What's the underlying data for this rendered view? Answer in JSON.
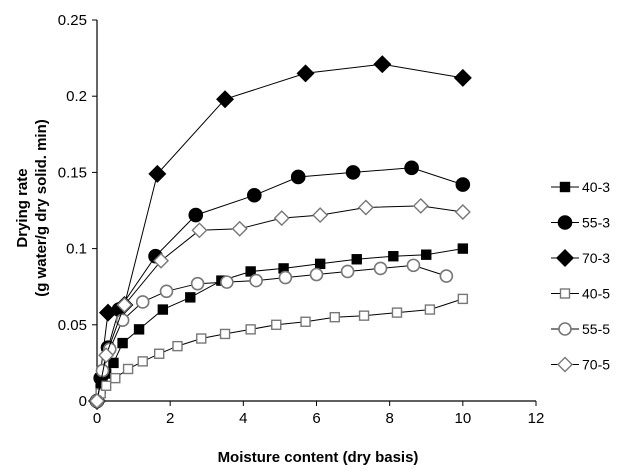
{
  "chart_data": {
    "type": "line",
    "title": "",
    "xlabel": "Moisture content (dry basis)",
    "ylabel_line1": "Drying rate",
    "ylabel_line2": "(g water/g dry solid. min)",
    "xlim": [
      0,
      12
    ],
    "ylim": [
      0,
      0.25
    ],
    "xticks": [
      0,
      2,
      4,
      6,
      8,
      10,
      12
    ],
    "xtick_labels": [
      "0",
      "2",
      "4",
      "6",
      "8",
      "10",
      "12"
    ],
    "yticks": [
      0,
      0.05,
      0.1,
      0.15,
      0.2,
      0.25
    ],
    "ytick_labels": [
      "0",
      "0.05",
      "0.1",
      "0.15",
      "0.2",
      "0.25"
    ],
    "grid": false,
    "legend_position": "right",
    "series": [
      {
        "name": "40-3",
        "marker": "square-filled",
        "x": [
          0,
          0.1,
          0.25,
          0.45,
          0.7,
          1.15,
          1.8,
          2.55,
          3.4,
          4.2,
          5.1,
          6.1,
          7.1,
          8.1,
          9.0,
          10.0
        ],
        "y": [
          0,
          0.008,
          0.018,
          0.025,
          0.038,
          0.047,
          0.06,
          0.068,
          0.079,
          0.085,
          0.087,
          0.09,
          0.093,
          0.095,
          0.096,
          0.1
        ]
      },
      {
        "name": "55-3",
        "marker": "circle-filled",
        "x": [
          0,
          0.1,
          0.3,
          0.6,
          1.6,
          2.7,
          4.3,
          5.5,
          7.0,
          8.6,
          10.0
        ],
        "y": [
          0,
          0.015,
          0.035,
          0.06,
          0.095,
          0.122,
          0.135,
          0.147,
          0.15,
          0.153,
          0.142
        ]
      },
      {
        "name": "70-3",
        "marker": "diamond-filled",
        "x": [
          0,
          0.3,
          0.75,
          1.65,
          3.5,
          5.7,
          7.8,
          10.0
        ],
        "y": [
          0,
          0.058,
          0.063,
          0.149,
          0.198,
          0.215,
          0.221,
          0.212
        ]
      },
      {
        "name": "40-5",
        "marker": "square-open",
        "x": [
          0,
          0.1,
          0.25,
          0.5,
          0.85,
          1.25,
          1.7,
          2.2,
          2.85,
          3.5,
          4.2,
          4.9,
          5.7,
          6.5,
          7.3,
          8.2,
          9.1,
          10.0
        ],
        "y": [
          0,
          0.005,
          0.01,
          0.015,
          0.021,
          0.026,
          0.031,
          0.036,
          0.041,
          0.044,
          0.047,
          0.05,
          0.052,
          0.055,
          0.056,
          0.058,
          0.06,
          0.067
        ]
      },
      {
        "name": "55-5",
        "marker": "circle-open",
        "x": [
          0,
          0.15,
          0.35,
          0.7,
          1.25,
          1.9,
          2.75,
          3.55,
          4.35,
          5.15,
          6.0,
          6.85,
          7.75,
          8.65,
          9.55
        ],
        "y": [
          0,
          0.02,
          0.034,
          0.053,
          0.065,
          0.072,
          0.077,
          0.078,
          0.079,
          0.081,
          0.083,
          0.085,
          0.087,
          0.089,
          0.082
        ]
      },
      {
        "name": "70-5",
        "marker": "diamond-open",
        "x": [
          0,
          0.25,
          0.75,
          1.75,
          2.8,
          3.9,
          5.05,
          6.1,
          7.35,
          8.85,
          10.0
        ],
        "y": [
          0,
          0.03,
          0.063,
          0.092,
          0.112,
          0.113,
          0.12,
          0.122,
          0.127,
          0.128,
          0.124
        ]
      }
    ]
  }
}
